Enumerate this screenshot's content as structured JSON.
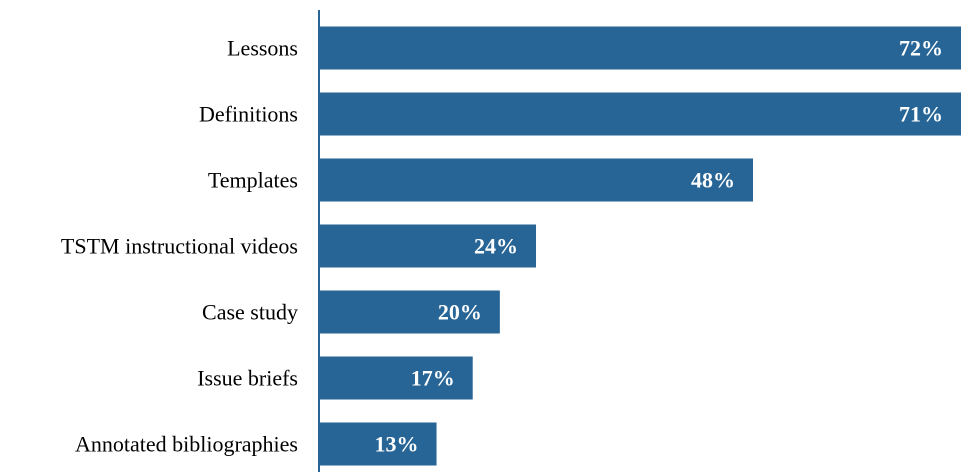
{
  "chart_data": {
    "type": "bar",
    "orientation": "horizontal",
    "categories": [
      "Lessons",
      "Definitions",
      "Templates",
      "TSTM instructional videos",
      "Case study",
      "Issue briefs",
      "Annotated bibliographies"
    ],
    "values": [
      72,
      71,
      48,
      24,
      20,
      17,
      13
    ],
    "value_labels": [
      "72%",
      "71%",
      "48%",
      "24%",
      "20%",
      "17%",
      "13%"
    ],
    "title": "",
    "xlabel": "",
    "ylabel": "",
    "xlim": [
      0,
      71
    ],
    "grid": false,
    "legend": "none",
    "colors": {
      "bar": "#276596",
      "axis": "#276596",
      "bar_label": "#ffffff",
      "category_label": "#000000"
    }
  }
}
